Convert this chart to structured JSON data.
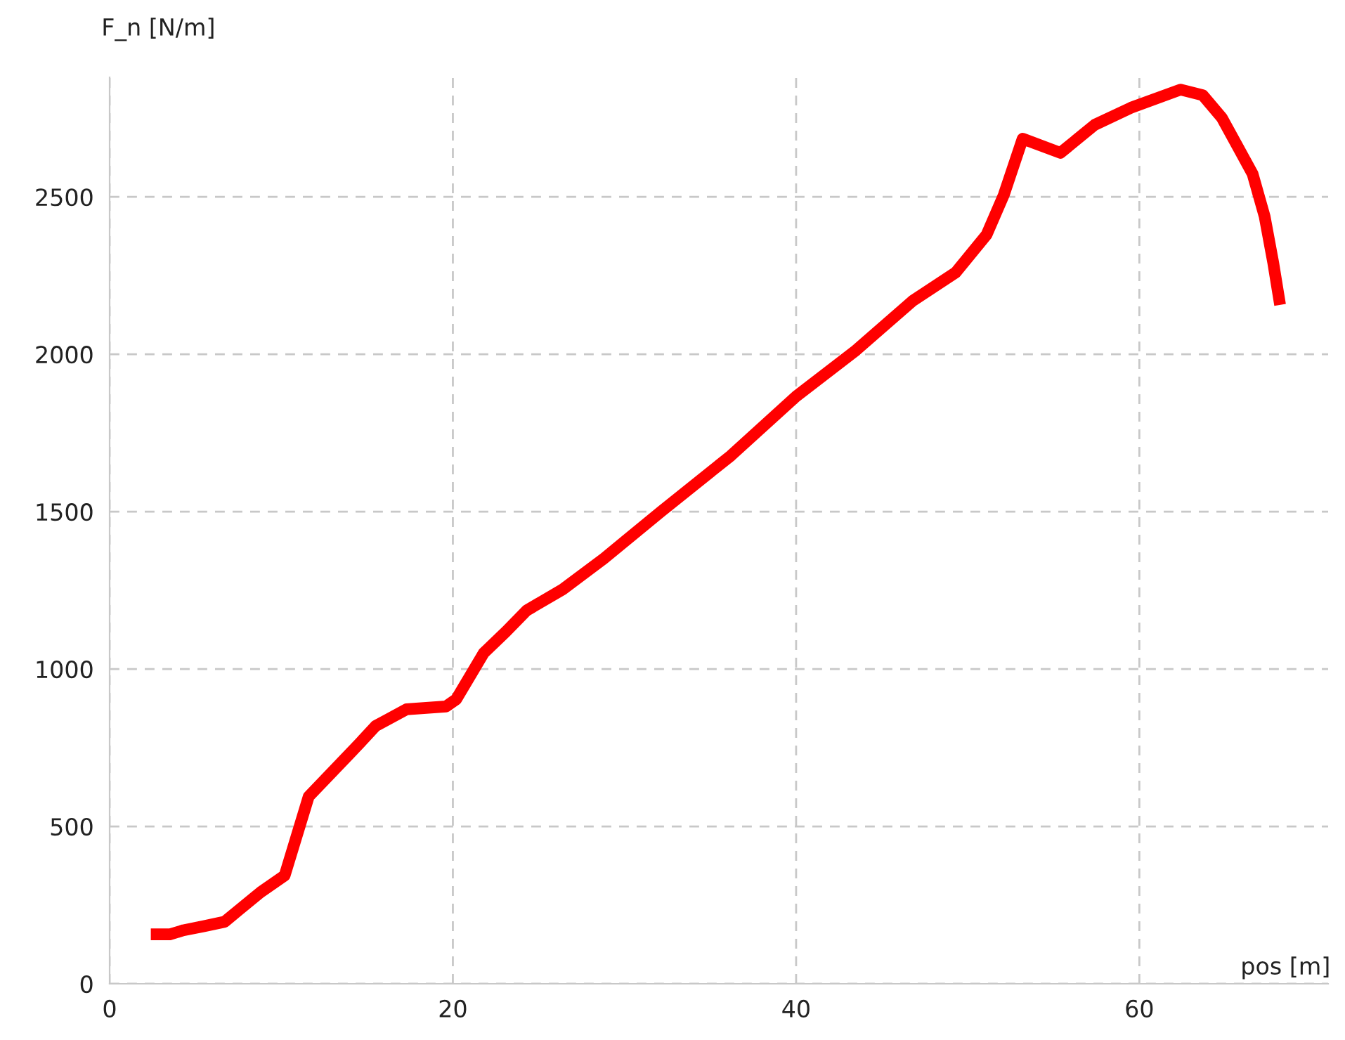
{
  "chart_data": {
    "type": "line",
    "xlabel": "pos [m]",
    "ylabel": "F_n [N/m]",
    "xlim": [
      0,
      71
    ],
    "ylim": [
      0,
      2880
    ],
    "xticks": [
      0,
      20,
      40,
      60
    ],
    "yticks": [
      0,
      500,
      1000,
      1500,
      2000,
      2500
    ],
    "grid": true,
    "marker": "none",
    "line_style": "solid",
    "series": [
      {
        "color": "#ff0000",
        "x": [
          2.4,
          3.5,
          4.3,
          5.5,
          6.7,
          7.5,
          8.8,
          10.2,
          11.6,
          14.5,
          15.5,
          17.3,
          19.6,
          20.2,
          21.8,
          23.1,
          24.3,
          26.4,
          28.8,
          32.1,
          36.2,
          40.0,
          43.5,
          46.8,
          49.3,
          51.1,
          52.1,
          53.2,
          55.4,
          57.4,
          59.5,
          62.4,
          63.7,
          64.8,
          65.8,
          66.6,
          67.3,
          67.8,
          68.2
        ],
        "values": [
          157,
          157,
          170,
          183,
          197,
          233,
          291,
          344,
          595,
          760,
          819,
          872,
          881,
          904,
          1051,
          1119,
          1186,
          1253,
          1351,
          1499,
          1678,
          1866,
          2013,
          2170,
          2260,
          2380,
          2506,
          2685,
          2640,
          2729,
          2783,
          2841,
          2823,
          2752,
          2653,
          2573,
          2438,
          2291,
          2157
        ]
      }
    ]
  }
}
